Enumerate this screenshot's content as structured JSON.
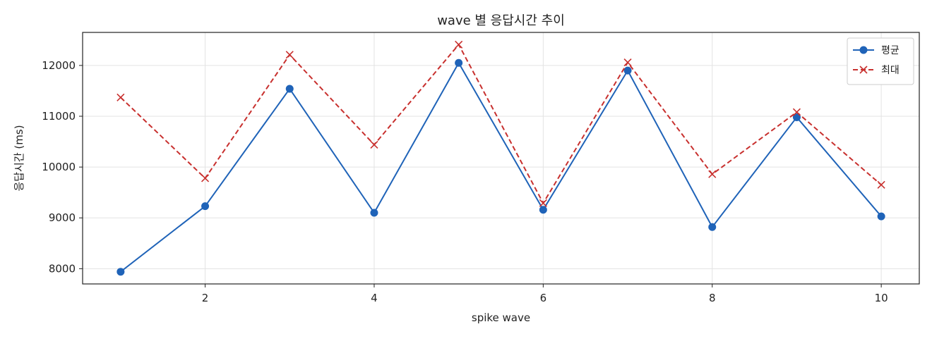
{
  "chart_data": {
    "type": "line",
    "title": "wave 별 응답시간 추이",
    "xlabel": "spike wave",
    "ylabel": "응답시간 (ms)",
    "x": [
      1,
      2,
      3,
      4,
      5,
      6,
      7,
      8,
      9,
      10
    ],
    "xlim": [
      0.55,
      10.45
    ],
    "ylim": [
      7700,
      12650
    ],
    "x_ticks": [
      2,
      4,
      6,
      8,
      10
    ],
    "y_ticks": [
      8000,
      9000,
      10000,
      11000,
      12000
    ],
    "grid": true,
    "legend_position": "top-right",
    "series": [
      {
        "name": "평균",
        "color": "#1f63b8",
        "line_style": "solid",
        "marker": "circle",
        "values": [
          7940,
          9230,
          11540,
          9100,
          12050,
          9160,
          11900,
          8820,
          10980,
          9030
        ]
      },
      {
        "name": "최대",
        "color": "#c8302e",
        "line_style": "dashed",
        "marker": "x",
        "values": [
          11370,
          9780,
          12210,
          10440,
          12410,
          9290,
          12060,
          9860,
          11080,
          9650
        ]
      }
    ]
  }
}
